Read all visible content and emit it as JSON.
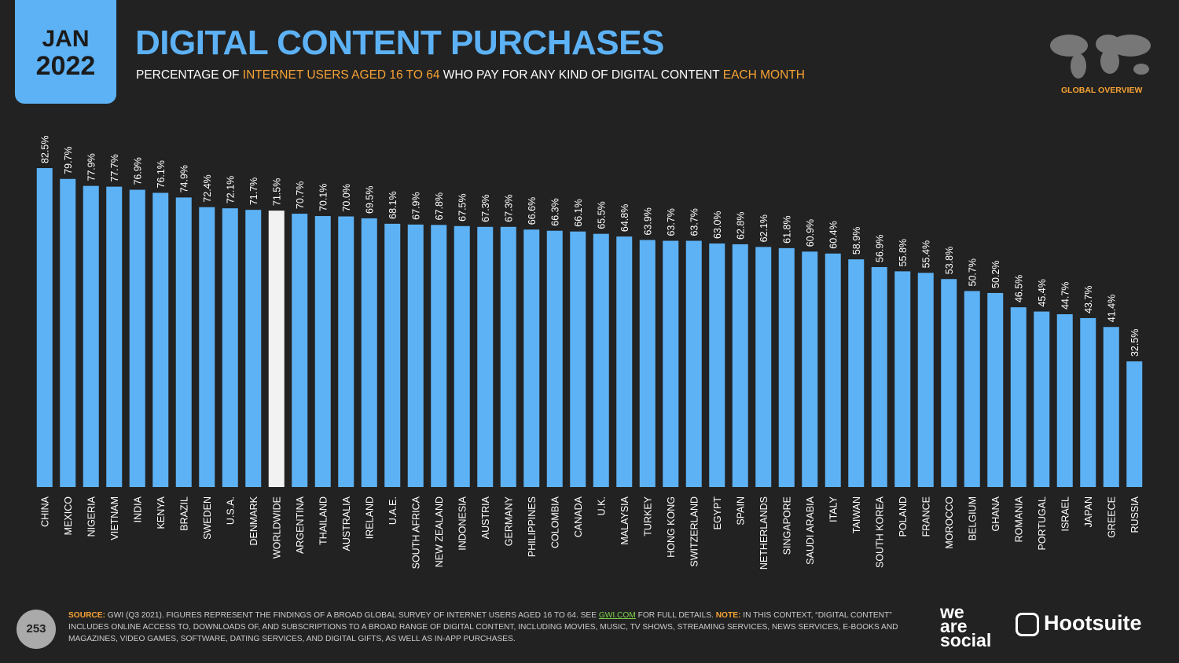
{
  "header": {
    "month": "JAN",
    "year": "2022",
    "badge": "GLOBAL OVERVIEW",
    "page": "253"
  },
  "chart_data": {
    "type": "bar",
    "title": "DIGITAL CONTENT PURCHASES",
    "subtitle": [
      {
        "text": "PERCENTAGE OF ",
        "highlight": false
      },
      {
        "text": "INTERNET USERS AGED 16 TO 64",
        "highlight": true
      },
      {
        "text": " WHO PAY FOR ANY KIND OF DIGITAL CONTENT ",
        "highlight": false
      },
      {
        "text": "EACH MONTH",
        "highlight": true
      }
    ],
    "categories": [
      "CHINA",
      "MEXICO",
      "NIGERIA",
      "VIETNAM",
      "INDIA",
      "KENYA",
      "BRAZIL",
      "SWEDEN",
      "U.S.A.",
      "DENMARK",
      "WORLDWIDE",
      "ARGENTINA",
      "THAILAND",
      "AUSTRALIA",
      "IRELAND",
      "U.A.E.",
      "SOUTH AFRICA",
      "NEW ZEALAND",
      "INDONESIA",
      "AUSTRIA",
      "GERMANY",
      "PHILIPPINES",
      "COLOMBIA",
      "CANADA",
      "U.K.",
      "MALAYSIA",
      "TURKEY",
      "HONG KONG",
      "SWITZERLAND",
      "EGYPT",
      "SPAIN",
      "NETHERLANDS",
      "SINGAPORE",
      "SAUDI ARABIA",
      "ITALY",
      "TAIWAN",
      "SOUTH KOREA",
      "POLAND",
      "FRANCE",
      "MOROCCO",
      "BELGIUM",
      "GHANA",
      "ROMANIA",
      "PORTUGAL",
      "ISRAEL",
      "JAPAN",
      "GREECE",
      "RUSSIA"
    ],
    "values": [
      82.5,
      79.7,
      77.9,
      77.7,
      76.9,
      76.1,
      74.9,
      72.4,
      72.1,
      71.7,
      71.5,
      70.7,
      70.1,
      70.0,
      69.5,
      68.1,
      67.9,
      67.8,
      67.5,
      67.3,
      67.3,
      66.6,
      66.3,
      66.1,
      65.5,
      64.8,
      63.9,
      63.7,
      63.7,
      63.0,
      62.8,
      62.1,
      61.8,
      60.9,
      60.4,
      58.9,
      56.9,
      55.8,
      55.4,
      53.8,
      50.7,
      50.2,
      46.5,
      45.4,
      44.7,
      43.7,
      41.4,
      32.5
    ],
    "value_labels": [
      "82.5%",
      "79.7%",
      "77.9%",
      "77.7%",
      "76.9%",
      "76.1%",
      "74.9%",
      "72.4%",
      "72.1%",
      "71.7%",
      "71.5%",
      "70.7%",
      "70.1%",
      "70.0%",
      "69.5%",
      "68.1%",
      "67.9%",
      "67.8%",
      "67.5%",
      "67.3%",
      "67.3%",
      "66.6%",
      "66.3%",
      "66.1%",
      "65.5%",
      "64.8%",
      "63.9%",
      "63.7%",
      "63.7%",
      "63.0%",
      "62.8%",
      "62.1%",
      "61.8%",
      "60.9%",
      "60.4%",
      "58.9%",
      "56.9%",
      "55.8%",
      "55.4%",
      "53.8%",
      "50.7%",
      "50.2%",
      "46.5%",
      "45.4%",
      "44.7%",
      "43.7%",
      "41.4%",
      "32.5%"
    ],
    "colors": [
      "#5db2f5",
      "#5db2f5",
      "#5db2f5",
      "#5db2f5",
      "#5db2f5",
      "#5db2f5",
      "#5db2f5",
      "#5db2f5",
      "#5db2f5",
      "#5db2f5",
      "#f2f2f2",
      "#5db2f5",
      "#5db2f5",
      "#5db2f5",
      "#5db2f5",
      "#5db2f5",
      "#5db2f5",
      "#5db2f5",
      "#5db2f5",
      "#5db2f5",
      "#5db2f5",
      "#5db2f5",
      "#5db2f5",
      "#5db2f5",
      "#5db2f5",
      "#5db2f5",
      "#5db2f5",
      "#5db2f5",
      "#5db2f5",
      "#5db2f5",
      "#5db2f5",
      "#5db2f5",
      "#5db2f5",
      "#5db2f5",
      "#5db2f5",
      "#5db2f5",
      "#5db2f5",
      "#5db2f5",
      "#5db2f5",
      "#5db2f5",
      "#5db2f5",
      "#5db2f5",
      "#5db2f5",
      "#5db2f5",
      "#5db2f5",
      "#5db2f5",
      "#5db2f5",
      "#5db2f5"
    ]
  },
  "footer": {
    "source_label": "SOURCE:",
    "source_text": " GWI (Q3 2021). FIGURES REPRESENT THE FINDINGS OF A BROAD GLOBAL SURVEY OF INTERNET USERS AGED 16 TO 64. SEE ",
    "link": "GWI.COM",
    "source_end": " FOR FULL DETAILS. ",
    "note_label": "NOTE:",
    "note_text": " IN THIS CONTEXT, “DIGITAL CONTENT” INCLUDES ONLINE ACCESS TO, DOWNLOADS OF, AND SUBSCRIPTIONS TO A BROAD RANGE OF DIGITAL CONTENT, INCLUDING MOVIES, MUSIC, TV SHOWS, STREAMING SERVICES, NEWS SERVICES, E-BOOKS AND MAGAZINES, VIDEO GAMES, SOFTWARE, DATING SERVICES, AND DIGITAL GIFTS, AS WELL AS IN-APP PURCHASES.",
    "logo1": [
      "we",
      "are",
      "social"
    ],
    "logo2": "Hootsuite"
  }
}
